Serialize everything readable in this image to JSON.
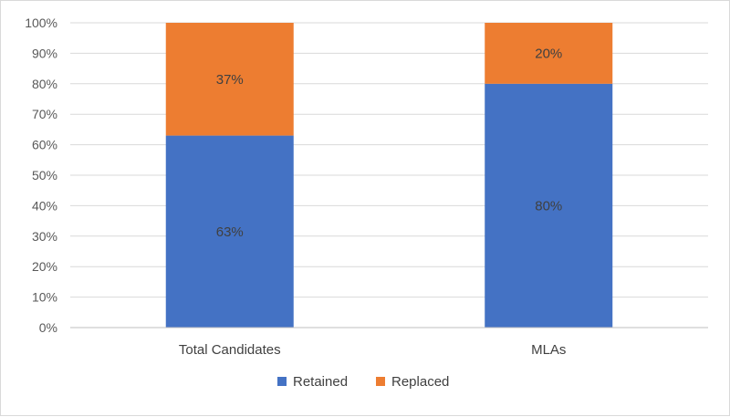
{
  "chart_data": {
    "type": "bar",
    "stacked": true,
    "categories": [
      "Total Candidates",
      "MLAs"
    ],
    "series": [
      {
        "name": "Retained",
        "values": [
          63,
          80
        ],
        "labels": [
          "63%",
          "80%"
        ],
        "color": "#4472C4"
      },
      {
        "name": "Replaced",
        "values": [
          37,
          20
        ],
        "labels": [
          "37%",
          "20%"
        ],
        "color": "#ED7D31"
      }
    ],
    "ylim": [
      0,
      100
    ],
    "y_ticks": [
      "0%",
      "10%",
      "20%",
      "30%",
      "40%",
      "50%",
      "60%",
      "70%",
      "80%",
      "90%",
      "100%"
    ],
    "grid": true,
    "legend_position": "bottom",
    "title": "",
    "xlabel": "",
    "ylabel": "",
    "gridline_color": "#d9d9d9"
  }
}
